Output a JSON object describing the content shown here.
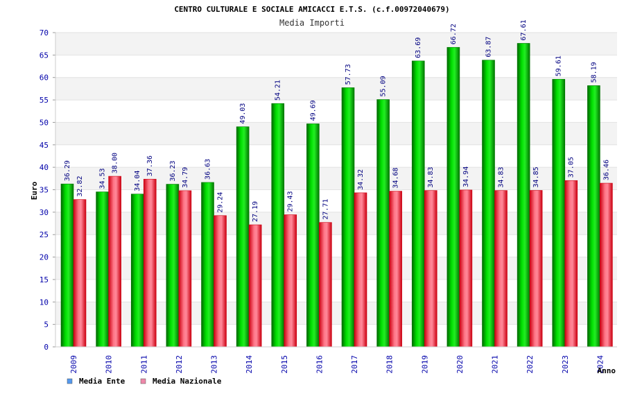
{
  "chart_data": {
    "type": "bar",
    "title": "CENTRO CULTURALE E SOCIALE AMICACCI E.T.S. (c.f.00972040679)",
    "subtitle": "Media Importi",
    "xlabel": "Anno",
    "ylabel": "Euro",
    "categories": [
      "2009",
      "2010",
      "2011",
      "2012",
      "2013",
      "2014",
      "2015",
      "2016",
      "2017",
      "2018",
      "2019",
      "2020",
      "2021",
      "2022",
      "2023",
      "2024"
    ],
    "series": [
      {
        "name": "Media Ente",
        "color": "#00cc00",
        "values": [
          36.29,
          34.53,
          34.04,
          36.23,
          36.63,
          49.03,
          54.21,
          49.69,
          57.73,
          55.09,
          63.69,
          66.72,
          63.87,
          67.61,
          59.61,
          58.19
        ],
        "labels": [
          "36.29",
          "34.53",
          "34.04",
          "36.23",
          "36.63",
          "49.03",
          "54.21",
          "49.69",
          "57.73",
          "55.09",
          "63.69",
          "66.72",
          "63.87",
          "67.61",
          "59.61",
          "58.19"
        ]
      },
      {
        "name": "Media Nazionale",
        "color": "#ee3344",
        "values": [
          32.82,
          38.0,
          37.36,
          34.79,
          29.24,
          27.19,
          29.43,
          27.71,
          34.32,
          34.68,
          34.83,
          34.94,
          34.83,
          34.85,
          37.05,
          36.46
        ],
        "labels": [
          "32.82",
          "38.00",
          "37.36",
          "34.79",
          "29.24",
          "27.19",
          "29.43",
          "27.71",
          "34.32",
          "34.68",
          "34.83",
          "34.94",
          "34.83",
          "34.85",
          "37.05",
          "36.46"
        ]
      }
    ],
    "ylim": [
      0,
      70
    ],
    "yticks": [
      "0",
      "5",
      "10",
      "15",
      "20",
      "25",
      "30",
      "35",
      "40",
      "45",
      "50",
      "55",
      "60",
      "65",
      "70"
    ],
    "grid": true,
    "legend_position": "bottom-left",
    "legend_colors": [
      "#5599ee",
      "#ee88aa"
    ]
  }
}
